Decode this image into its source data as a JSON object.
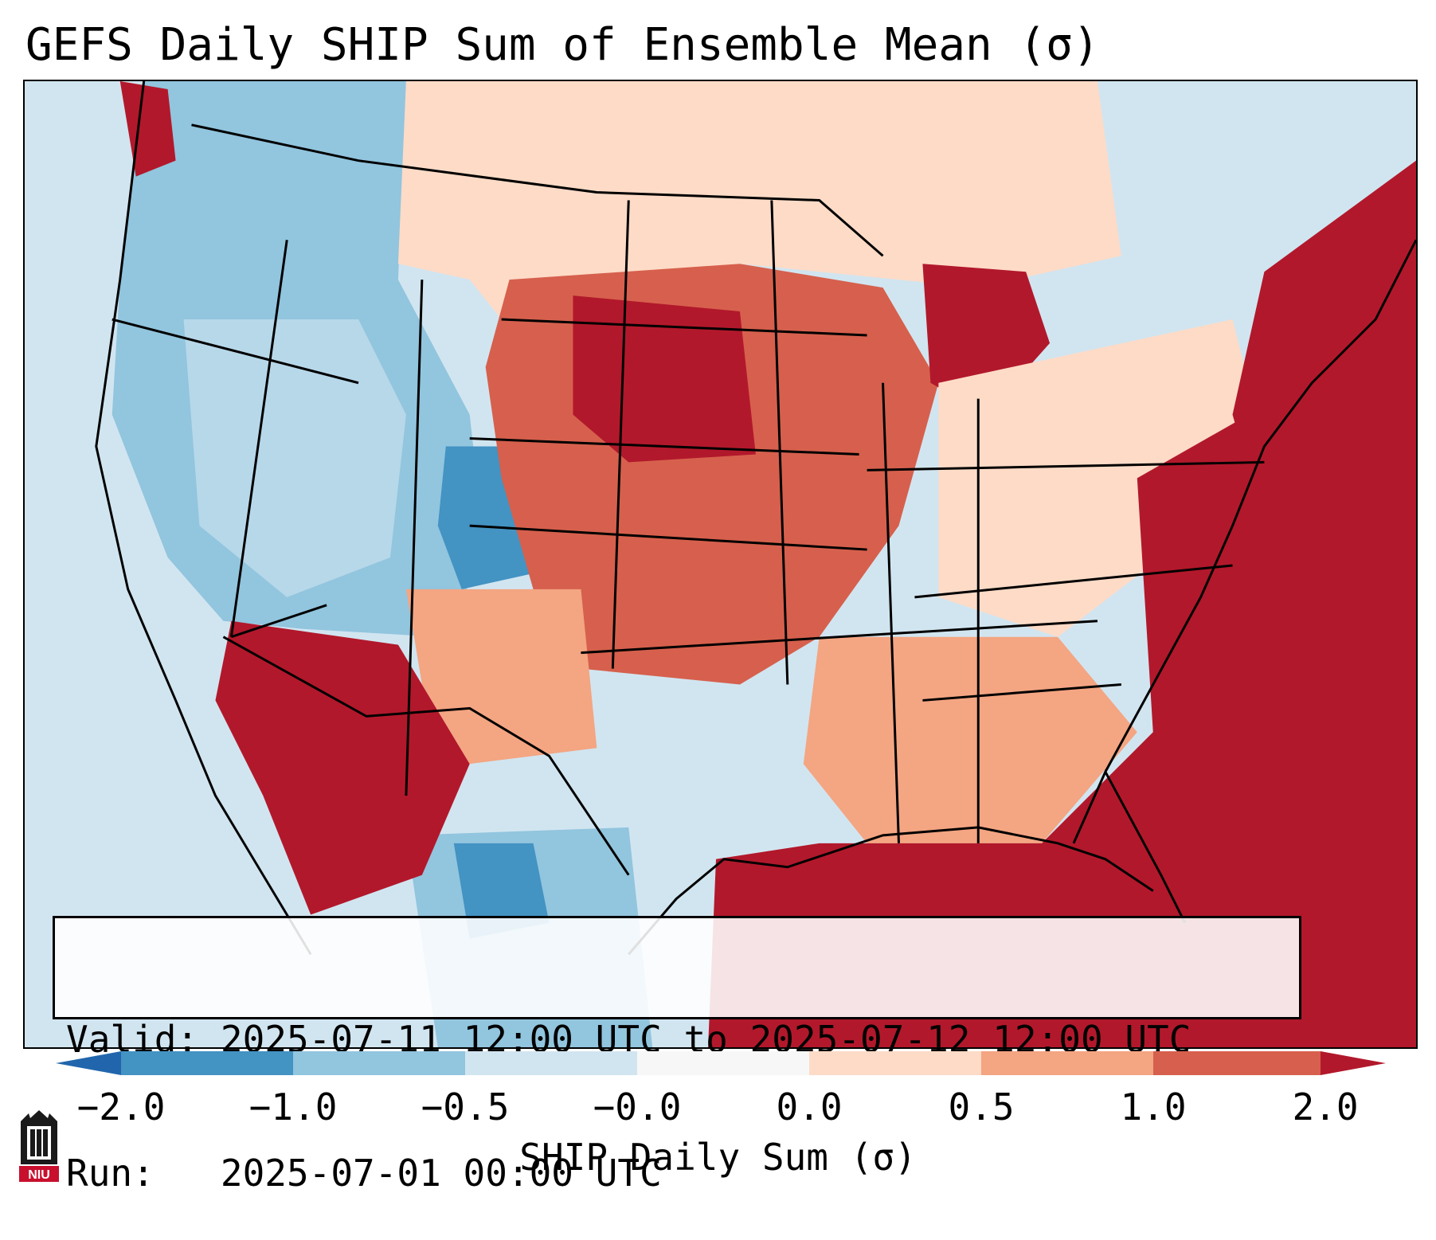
{
  "title": "GEFS Daily SHIP Sum of Ensemble Mean (σ)",
  "info": {
    "valid_label": "Valid:",
    "valid_value": "2025-07-11 12:00 UTC to 2025-07-12 12:00 UTC",
    "run_label": "Run:",
    "run_value": "2025-07-01 00:00 UTC"
  },
  "colorbar": {
    "label": "SHIP Daily Sum (σ)",
    "ticks": [
      "−2.0",
      "−1.0",
      "−0.5",
      "−0.0",
      "0.0",
      "0.5",
      "1.0",
      "2.0"
    ],
    "colors": [
      "#2166ac",
      "#4393c3",
      "#92c5de",
      "#d1e5f0",
      "#f7f7f7",
      "#fddbc7",
      "#f4a582",
      "#d6604d",
      "#b2182b"
    ]
  },
  "logo": {
    "text": "NIU"
  }
}
